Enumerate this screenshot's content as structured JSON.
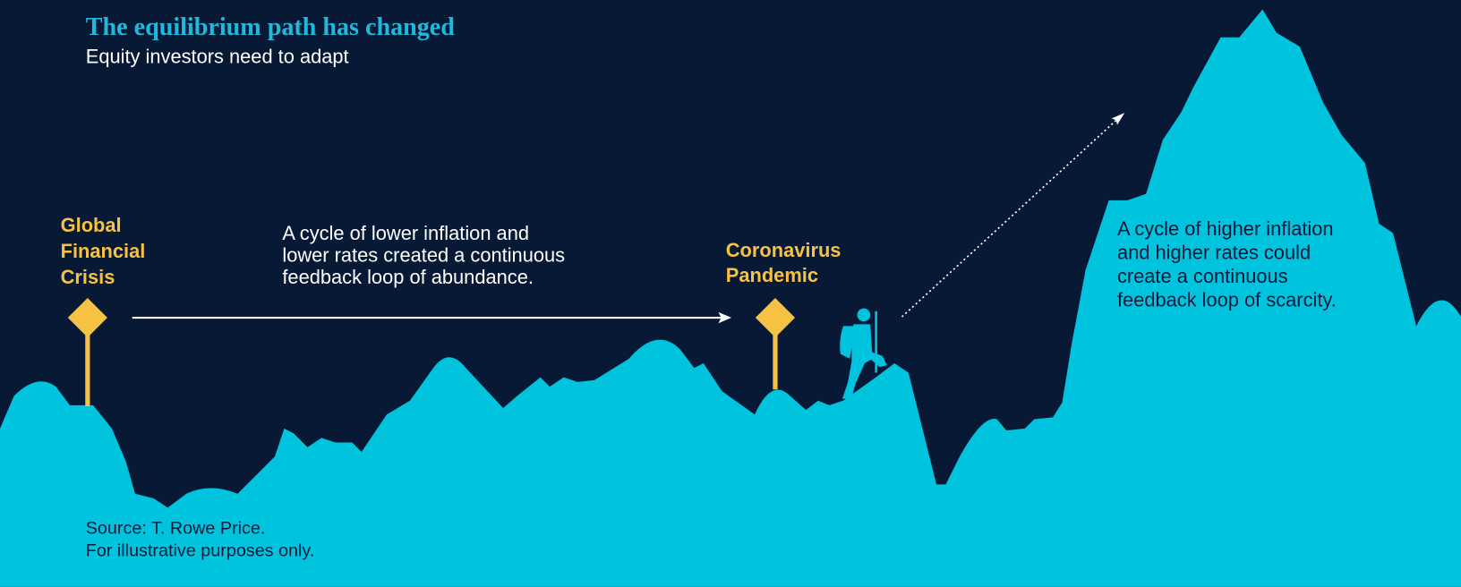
{
  "header": {
    "title": "The equilibrium path has changed",
    "subtitle": "Equity investors need to adapt"
  },
  "markers": [
    {
      "label_lines": [
        "Global",
        "Financial",
        "Crisis"
      ]
    },
    {
      "label_lines": [
        "Coronavirus",
        "Pandemic"
      ]
    }
  ],
  "annotations": [
    {
      "lines": [
        "A cycle of lower inflation and",
        "lower rates created a continuous",
        "feedback loop of abundance."
      ]
    },
    {
      "lines": [
        "A cycle of higher inflation",
        "and higher rates could",
        "create a continuous",
        "feedback loop of scarcity."
      ]
    }
  ],
  "footer": {
    "lines": [
      "Source: T. Rowe Price.",
      "For illustrative purposes only."
    ]
  }
}
